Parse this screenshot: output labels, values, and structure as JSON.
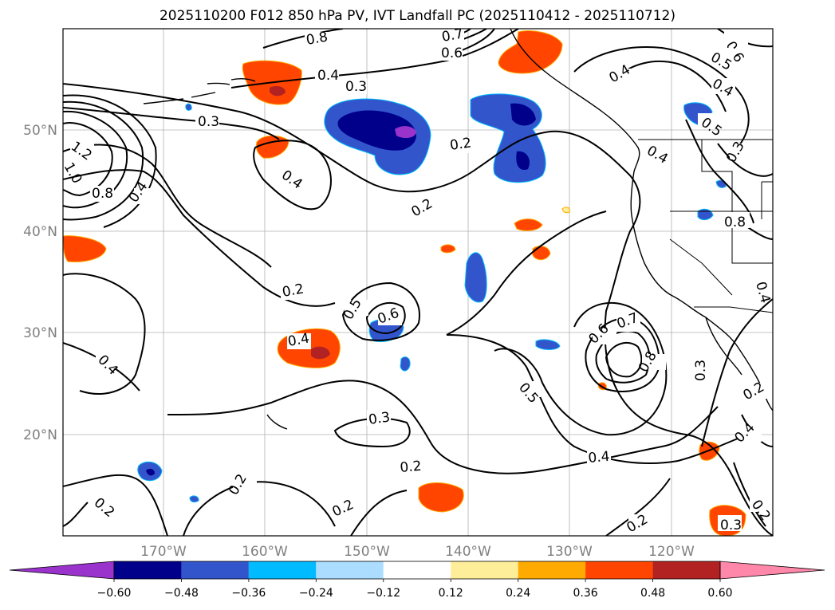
{
  "title": "2025110200 F012 850 hPa PV, IVT Landfall PC (2025110412 - 2025110712)",
  "lat_labels": [
    "50°N",
    "40°N",
    "30°N",
    "20°N"
  ],
  "lon_labels": [
    "170°W",
    "160°W",
    "150°W",
    "140°W",
    "130°W",
    "120°W"
  ],
  "contour_labels": [
    "0.8",
    "0.7",
    "0.6",
    "0.6",
    "0.5",
    "0.4",
    "0.3",
    "0.5",
    "0.4",
    "0.3",
    "1.2",
    "1.0",
    "0.8",
    "0.4",
    "0.4",
    "0.2",
    "0.2",
    "0.4",
    "0.3",
    "0.4",
    "0.2",
    "0.5",
    "0.6",
    "0.4",
    "0.4",
    "0.6",
    "0.7",
    "0.8",
    "0.5",
    "0.3",
    "0.2",
    "0.4",
    "0.3",
    "0.2",
    "0.4",
    "0.2",
    "0.2",
    "0.2",
    "0.2",
    "0.3",
    "0.2",
    "0.4",
    "0.8"
  ],
  "colorbar": {
    "colors": [
      "#9933cc",
      "#00008b",
      "#3355cc",
      "#00bbff",
      "#aaddff",
      "#ffffff",
      "#ffee99",
      "#ffaa00",
      "#ff4500",
      "#b22222",
      "#ff88aa"
    ],
    "tick_labels": [
      "−0.60",
      "−0.48",
      "−0.36",
      "−0.24",
      "−0.12",
      "0.12",
      "0.24",
      "0.36",
      "0.48",
      "0.60"
    ]
  }
}
